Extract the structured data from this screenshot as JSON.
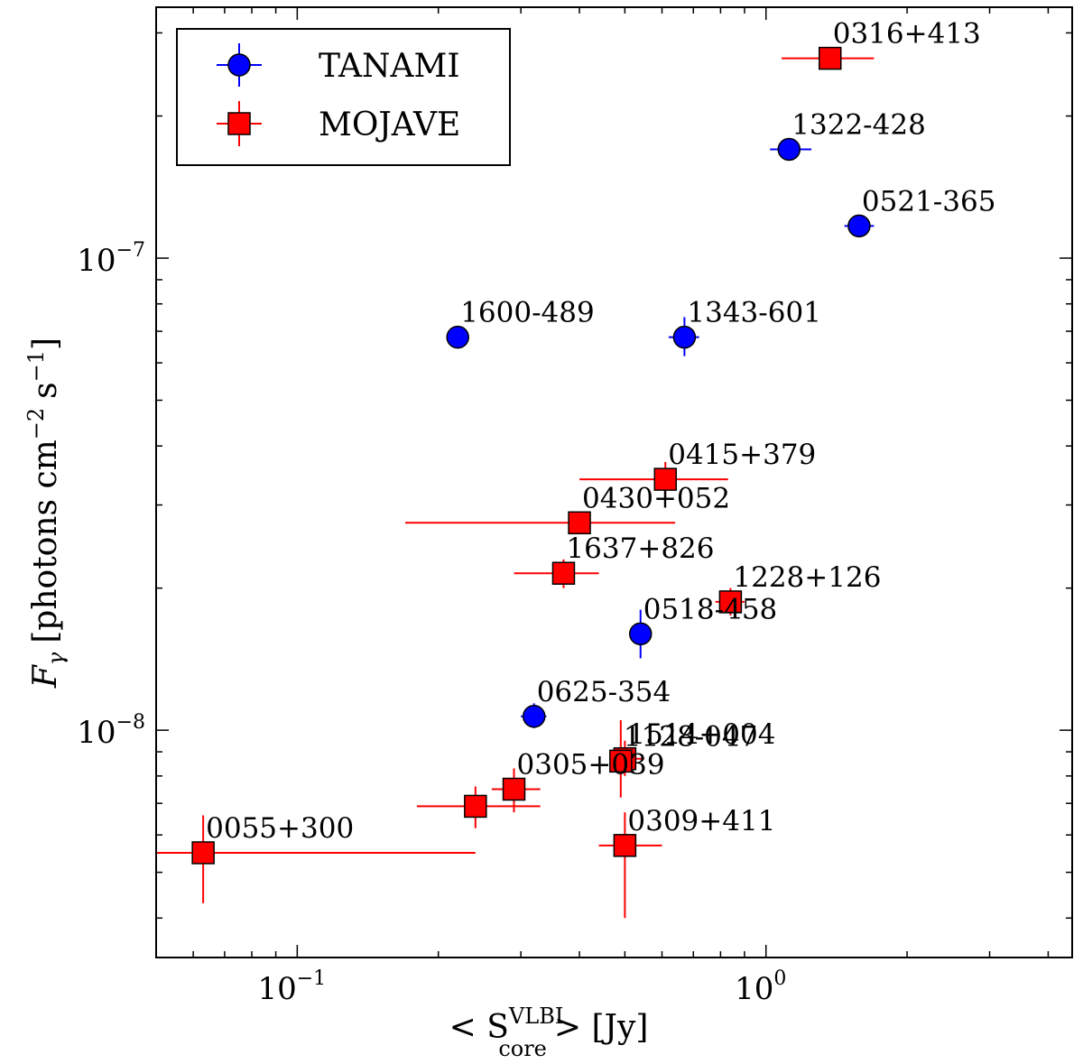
{
  "chart_data": {
    "type": "scatter",
    "x_scale": "log",
    "y_scale": "log",
    "xlim": [
      0.05,
      4.5
    ],
    "ylim": [
      3.3e-09,
      3.4e-07
    ],
    "xlabel": {
      "prefix": "< S",
      "sup": "VLBI",
      "sub": "core",
      "suffix": "> [Jy]"
    },
    "ylabel": {
      "var": "F",
      "sub": "γ",
      "text": "[photons cm",
      "exp1": "−2",
      "mid": "s",
      "exp2": "−1",
      "end": "]"
    },
    "x_ticks": [
      {
        "value": 0.1,
        "base": "10",
        "exp": "−1"
      },
      {
        "value": 1.0,
        "base": "10",
        "exp": "0"
      }
    ],
    "y_ticks": [
      {
        "value": 1e-08,
        "base": "10",
        "exp": "−8"
      },
      {
        "value": 1e-07,
        "base": "10",
        "exp": "−7"
      }
    ],
    "legend": {
      "position": "top-left",
      "entries": [
        {
          "label": "TANAMI",
          "series": "TANAMI"
        },
        {
          "label": "MOJAVE",
          "series": "MOJAVE"
        }
      ]
    },
    "series": [
      {
        "name": "TANAMI",
        "marker": "circle",
        "color": "#0000ff",
        "points": [
          {
            "label": "1322-428",
            "x": 1.12,
            "y": 1.7e-07,
            "x_err": [
              1.02,
              1.25
            ],
            "y_err": [
              1.62e-07,
              1.78e-07
            ]
          },
          {
            "label": "0521-365",
            "x": 1.58,
            "y": 1.17e-07,
            "x_err": [
              1.47,
              1.7
            ],
            "y_err": [
              1.11e-07,
              1.23e-07
            ]
          },
          {
            "label": "1600-489",
            "x": 0.22,
            "y": 6.8e-08,
            "x_err": [
              0.215,
              0.225
            ],
            "y_err": [
              6.6e-08,
              7e-08
            ]
          },
          {
            "label": "1343-601",
            "x": 0.67,
            "y": 6.8e-08,
            "x_err": [
              0.62,
              0.72
            ],
            "y_err": [
              6.2e-08,
              7.5e-08
            ]
          },
          {
            "label": "0518-458",
            "x": 0.54,
            "y": 1.6e-08,
            "x_err": [
              0.52,
              0.56
            ],
            "y_err": [
              1.42e-08,
              1.8e-08
            ]
          },
          {
            "label": "0625-354",
            "x": 0.32,
            "y": 1.07e-08,
            "x_err": [
              0.3,
              0.34
            ],
            "y_err": [
              1.01e-08,
              1.14e-08
            ]
          }
        ]
      },
      {
        "name": "MOJAVE",
        "marker": "square",
        "color": "#ff0000",
        "points": [
          {
            "label": "0316+413",
            "x": 1.37,
            "y": 2.65e-07,
            "x_err": [
              1.08,
              1.7
            ],
            "y_err": [
              2.6e-07,
              2.7e-07
            ]
          },
          {
            "label": "0415+379",
            "x": 0.61,
            "y": 3.4e-08,
            "x_err": [
              0.4,
              0.83
            ],
            "y_err": [
              3.1e-08,
              3.7e-08
            ]
          },
          {
            "label": "0430+052",
            "x": 0.4,
            "y": 2.75e-08,
            "x_err": [
              0.17,
              0.64
            ],
            "y_err": [
              2.6e-08,
              2.9e-08
            ]
          },
          {
            "label": "1637+826",
            "x": 0.37,
            "y": 2.15e-08,
            "x_err": [
              0.29,
              0.44
            ],
            "y_err": [
              2e-08,
              2.3e-08
            ]
          },
          {
            "label": "1228+126",
            "x": 0.84,
            "y": 1.87e-08,
            "x_err": [
              0.78,
              0.9
            ],
            "y_err": [
              1.75e-08,
              2e-08
            ]
          },
          {
            "label": "1514+004",
            "x": 0.5,
            "y": 8.7e-09,
            "x_err": [
              0.48,
              0.55
            ],
            "y_err": [
              8e-09,
              9.5e-09
            ]
          },
          {
            "label": "1128-047",
            "x": 0.49,
            "y": 8.6e-09,
            "x_err": [
              0.47,
              0.51
            ],
            "y_err": [
              7.2e-09,
              1.05e-08
            ]
          },
          {
            "label": "0305+039",
            "x": 0.29,
            "y": 7.5e-09,
            "x_err": [
              0.26,
              0.33
            ],
            "y_err": [
              6.7e-09,
              8.3e-09
            ]
          },
          {
            "label": "0305+039b",
            "x": 0.24,
            "y": 6.9e-09,
            "x_err": [
              0.18,
              0.33
            ],
            "y_err": [
              6.2e-09,
              7.6e-09
            ]
          },
          {
            "label": "0309+411",
            "x": 0.5,
            "y": 5.7e-09,
            "x_err": [
              0.44,
              0.6
            ],
            "y_err": [
              4e-09,
              6.7e-09
            ]
          },
          {
            "label": "0055+300",
            "x": 0.063,
            "y": 5.5e-09,
            "x_err": [
              0.05,
              0.24
            ],
            "y_err": [
              4.3e-09,
              6.6e-09
            ]
          }
        ]
      }
    ],
    "annotations": [
      {
        "text": "0316+413",
        "for": "0316+413"
      },
      {
        "text": "1322-428",
        "for": "1322-428"
      },
      {
        "text": "0521-365",
        "for": "0521-365"
      },
      {
        "text": "1600-489",
        "for": "1600-489"
      },
      {
        "text": "1343-601",
        "for": "1343-601"
      },
      {
        "text": "0415+379",
        "for": "0415+379"
      },
      {
        "text": "0430+052",
        "for": "0430+052"
      },
      {
        "text": "1637+826",
        "for": "1637+826"
      },
      {
        "text": "1228+126",
        "for": "1228+126"
      },
      {
        "text": "0518-458",
        "for": "0518-458"
      },
      {
        "text": "0625-354",
        "for": "0625-354"
      },
      {
        "text": "1514+004",
        "for": "1514+004"
      },
      {
        "text": "1128-047",
        "for": "1128-047"
      },
      {
        "text": "0305+039",
        "for": "0305+039"
      },
      {
        "text": "0309+411",
        "for": "0309+411"
      },
      {
        "text": "0055+300",
        "for": "0055+300"
      }
    ]
  }
}
